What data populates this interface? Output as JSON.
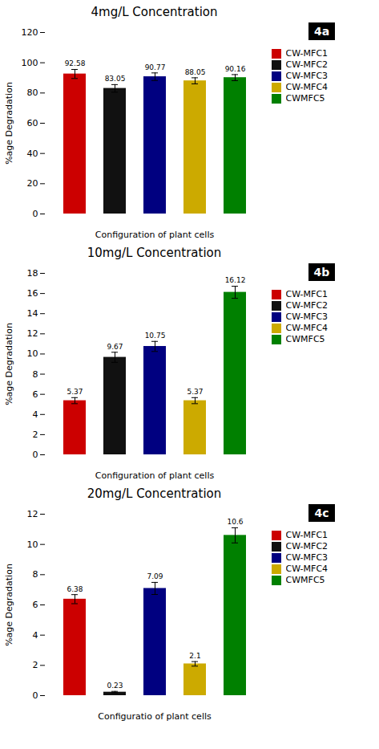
{
  "chart_data": [
    {
      "type": "bar",
      "title": "4mg/L Concentration",
      "annotations": [
        "4a"
      ],
      "categories": [
        "CW-MFC1",
        "CW-MFC2",
        "CW-MFC3",
        "CW-MFC4",
        "CWMFC5"
      ],
      "values": [
        92.58,
        83.05,
        90.77,
        88.05,
        90.16
      ],
      "errors": [
        3.0,
        2.5,
        2.5,
        2.0,
        2.0
      ],
      "colors": [
        "#cc0000",
        "#111111",
        "#000080",
        "#ccaa00",
        "#008000"
      ],
      "ylim": [
        0,
        120
      ],
      "yticks": [
        0,
        20,
        40,
        60,
        80,
        100,
        120
      ],
      "xlabel": "Configuration of plant cells",
      "ylabel": "%age Degradation",
      "grid": false,
      "legend": "upper right",
      "data_labels": true,
      "tick_labels": "y"
    },
    {
      "type": "bar",
      "title": "10mg/L Concentration",
      "annotations": [
        "4b"
      ],
      "categories": [
        "CW-MFC1",
        "CW-MFC2",
        "CW-MFC3",
        "CW-MFC4",
        "CWMFC5"
      ],
      "values": [
        5.37,
        9.67,
        10.75,
        5.37,
        16.12
      ],
      "errors": [
        0.3,
        0.5,
        0.5,
        0.3,
        0.6
      ],
      "colors": [
        "#cc0000",
        "#111111",
        "#000080",
        "#ccaa00",
        "#008000"
      ],
      "ylim": [
        0,
        18
      ],
      "yticks": [
        0,
        2,
        4,
        6,
        8,
        10,
        12,
        14,
        16,
        18
      ],
      "xlabel": "Configuration of plant cells",
      "ylabel": "%age Degradation",
      "grid": false,
      "legend": "upper right",
      "data_labels": true,
      "tick_labels": "y"
    },
    {
      "type": "bar",
      "title": "20mg/L Concentration",
      "annotations": [
        "4c"
      ],
      "categories": [
        "CW-MFC1",
        "CW-MFC2",
        "CW-MFC3",
        "CW-MFC4",
        "CWMFC5"
      ],
      "values": [
        6.38,
        0.23,
        7.09,
        2.1,
        10.6
      ],
      "errors": [
        0.3,
        0.05,
        0.4,
        0.15,
        0.5
      ],
      "colors": [
        "#cc0000",
        "#111111",
        "#000080",
        "#ccaa00",
        "#008000"
      ],
      "ylim": [
        0,
        12
      ],
      "yticks": [
        0,
        2,
        4,
        6,
        8,
        10,
        12
      ],
      "xlabel": "Configuratio of plant cells",
      "ylabel": "%age Degradation",
      "grid": false,
      "legend": "upper right",
      "data_labels": true,
      "tick_labels": "y"
    }
  ]
}
